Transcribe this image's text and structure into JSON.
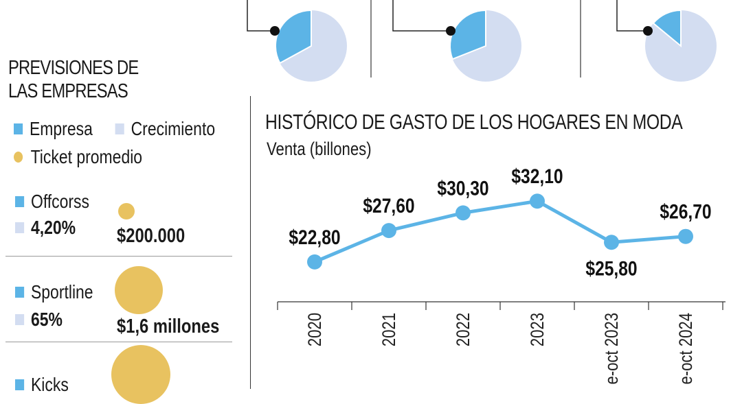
{
  "colors": {
    "empresa": "#5cb4e6",
    "crecimiento": "#d3ddf1",
    "ticket": "#e8c260",
    "line": "#5cb4e6",
    "text": "#1a1a1a"
  },
  "top_pies": [
    {
      "share": 0.33
    },
    {
      "share": 0.31
    },
    {
      "share": 0.14
    }
  ],
  "left": {
    "title_line1": "PREVISIONES DE",
    "title_line2": "LAS EMPRESAS",
    "legend": {
      "empresa": "Empresa",
      "crecimiento": "Crecimiento",
      "ticket": "Ticket promedio"
    },
    "companies": [
      {
        "name": "Offcorss",
        "growth": "4,20%",
        "ticket": "$200.000"
      },
      {
        "name": "Sportline",
        "growth": "65%",
        "ticket": "$1,6 millones"
      },
      {
        "name": "Kicks",
        "growth": "",
        "ticket": ""
      }
    ]
  },
  "chart_data": {
    "type": "line",
    "title": "HISTÓRICO DE GASTO DE LOS HOGARES EN MODA",
    "subtitle": "Venta (billones)",
    "categories": [
      "2020",
      "2021",
      "2022",
      "2023",
      "e-oct 2023",
      "e-oct 2024"
    ],
    "values": [
      22.8,
      27.6,
      30.3,
      32.1,
      25.8,
      26.7
    ],
    "labels": [
      "$22,80",
      "$27,60",
      "$30,30",
      "$32,10",
      "$25,80",
      "$26,70"
    ],
    "ylim": [
      16.7,
      38.0
    ],
    "grid": false,
    "legend": "none"
  }
}
